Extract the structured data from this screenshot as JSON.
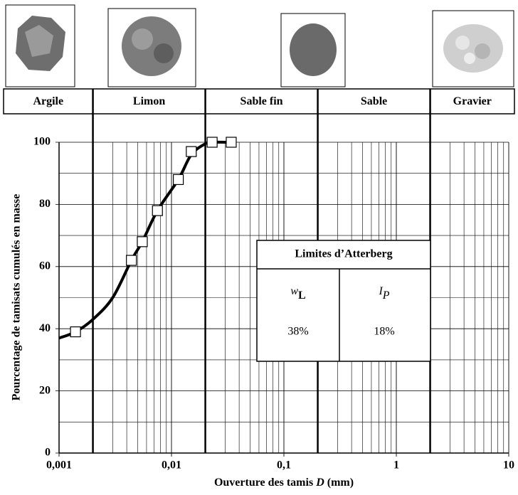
{
  "chart_data": {
    "type": "line",
    "y_label": "Pourcentage de tamisats cumulés en masse",
    "x_label_parts": [
      "Ouverture des tamis ",
      "D",
      " (mm)"
    ],
    "log_x": true,
    "grid": true,
    "xlim": [
      0.001,
      10
    ],
    "xticks": [
      {
        "value": 0.001,
        "label": "0,001"
      },
      {
        "value": 0.01,
        "label": "0,01"
      },
      {
        "value": 0.1,
        "label": "0,1"
      },
      1,
      10
    ],
    "ylim": [
      0,
      100
    ],
    "yticks": [
      0,
      20,
      40,
      60,
      80,
      100
    ],
    "y_minor_ticks": [
      10,
      30,
      50,
      70,
      90
    ],
    "classes": [
      "Argile",
      "Limon",
      "Sable fin",
      "Sable",
      "Gravier"
    ],
    "class_bounds": [
      0.002,
      0.02,
      0.2,
      2
    ],
    "series": [
      {
        "color": "#000000",
        "markers": false,
        "x": [
          0.001,
          0.0014,
          0.002,
          0.003,
          0.0044,
          0.0055,
          0.0075,
          0.0115,
          0.015,
          0.02,
          0.023,
          0.034
        ],
        "values": [
          37,
          39,
          43,
          50,
          62,
          68,
          78,
          88,
          96,
          99.5,
          100,
          100
        ]
      },
      {
        "color": "#000000",
        "markers": true,
        "x": [
          0.0014,
          0.0044,
          0.0055,
          0.0075,
          0.0115,
          0.015,
          0.023,
          0.034
        ],
        "values": [
          39,
          62,
          68,
          78,
          88,
          97,
          100,
          100
        ]
      }
    ],
    "atterberg": {
      "title": "Limites d’Atterberg",
      "columns": [
        {
          "symbol": "w",
          "sub": "L",
          "value": "38%"
        },
        {
          "symbol": "I",
          "sub": "P",
          "value": "18%"
        }
      ]
    }
  }
}
